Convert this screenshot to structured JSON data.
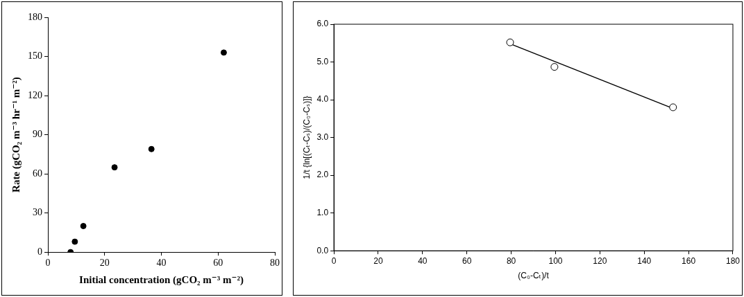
{
  "chart_data": [
    {
      "type": "scatter",
      "x_label": "Initial concentration (gCO₂ m⁻³ m⁻²)",
      "y_label": "Rate (gCO₂ m⁻³ hr⁻¹ m⁻²)",
      "xlim": [
        0,
        80
      ],
      "xticks": [
        0,
        20,
        40,
        60,
        80
      ],
      "ylim": [
        0,
        180
      ],
      "yticks": [
        0,
        30,
        60,
        90,
        120,
        150,
        180
      ],
      "grid": false,
      "series": [
        {
          "type": "scatter",
          "marker": "circle_filled",
          "color": "#000000",
          "x": [
            8,
            9.5,
            12.5,
            23.5,
            36.5,
            62
          ],
          "values": [
            0,
            8,
            20,
            65,
            79,
            153
          ]
        }
      ]
    },
    {
      "type": "scatter",
      "x_label": "(C₀-Cₜ)/t",
      "y_label": "1/t {ln[(Cₜ-Cₛ)/(C₀-Cₛ)]}",
      "xlim": [
        0,
        180
      ],
      "xticks": [
        0,
        20,
        40,
        60,
        80,
        100,
        120,
        140,
        160,
        180
      ],
      "ylim": [
        0,
        6
      ],
      "yticks": [
        {
          "value": 0,
          "label": "0.0"
        },
        {
          "value": 1,
          "label": "1.0"
        },
        {
          "value": 2,
          "label": "2.0"
        },
        {
          "value": 3,
          "label": "3.0"
        },
        {
          "value": 4,
          "label": "4.0"
        },
        {
          "value": 5,
          "label": "5.0"
        },
        {
          "value": 6,
          "label": "6.0"
        }
      ],
      "grid": false,
      "series": [
        {
          "type": "scatter",
          "marker": "circle_open",
          "color": "#000000",
          "x": [
            79.5,
            99.5,
            153
          ],
          "values": [
            5.52,
            4.87,
            3.8
          ]
        },
        {
          "type": "line",
          "line_style": "solid",
          "color": "#000000",
          "x": [
            80,
            153
          ],
          "values": [
            5.47,
            3.77
          ]
        }
      ]
    }
  ]
}
